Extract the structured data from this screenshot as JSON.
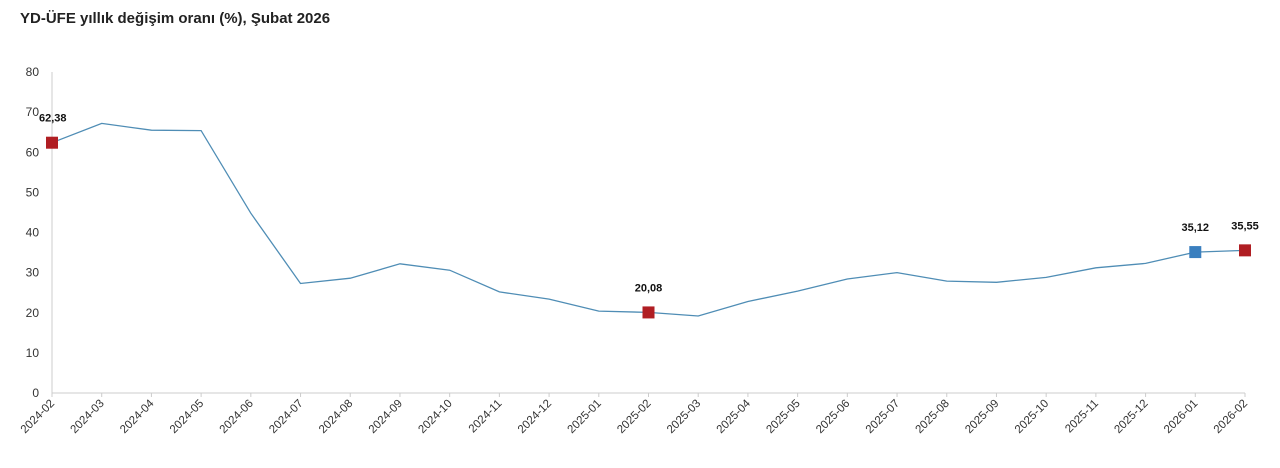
{
  "chart_data": {
    "type": "line",
    "title": "YD-ÜFE yıllık değişim oranı (%), Şubat 2026",
    "xlabel": "",
    "ylabel": "",
    "ylim": [
      0,
      80
    ],
    "yticks": [
      0,
      10,
      20,
      30,
      40,
      50,
      60,
      70,
      80
    ],
    "grid": false,
    "legend": "none",
    "categories": [
      "2024-02",
      "2024-03",
      "2024-04",
      "2024-05",
      "2024-06",
      "2024-07",
      "2024-08",
      "2024-09",
      "2024-10",
      "2024-11",
      "2024-12",
      "2025-01",
      "2025-02",
      "2025-03",
      "2025-04",
      "2025-05",
      "2025-06",
      "2025-07",
      "2025-08",
      "2025-09",
      "2025-10",
      "2025-11",
      "2025-12",
      "2026-01",
      "2026-02"
    ],
    "series": [
      {
        "values": [
          62.38,
          67.2,
          65.5,
          65.4,
          44.8,
          27.3,
          28.6,
          32.2,
          30.6,
          25.2,
          23.4,
          20.4,
          20.08,
          19.2,
          22.8,
          25.4,
          28.4,
          30.0,
          27.9,
          27.6,
          28.8,
          31.2,
          32.3,
          35.12,
          35.55
        ],
        "color": "#4f8db5"
      }
    ],
    "highlighted_points": [
      {
        "category": "2024-02",
        "label": "62,38",
        "color": "#b01e23"
      },
      {
        "category": "2025-02",
        "label": "20,08",
        "color": "#b01e23"
      },
      {
        "category": "2026-01",
        "label": "35,12",
        "color": "#3a7fbf"
      },
      {
        "category": "2026-02",
        "label": "35,55",
        "color": "#b01e23"
      }
    ]
  }
}
